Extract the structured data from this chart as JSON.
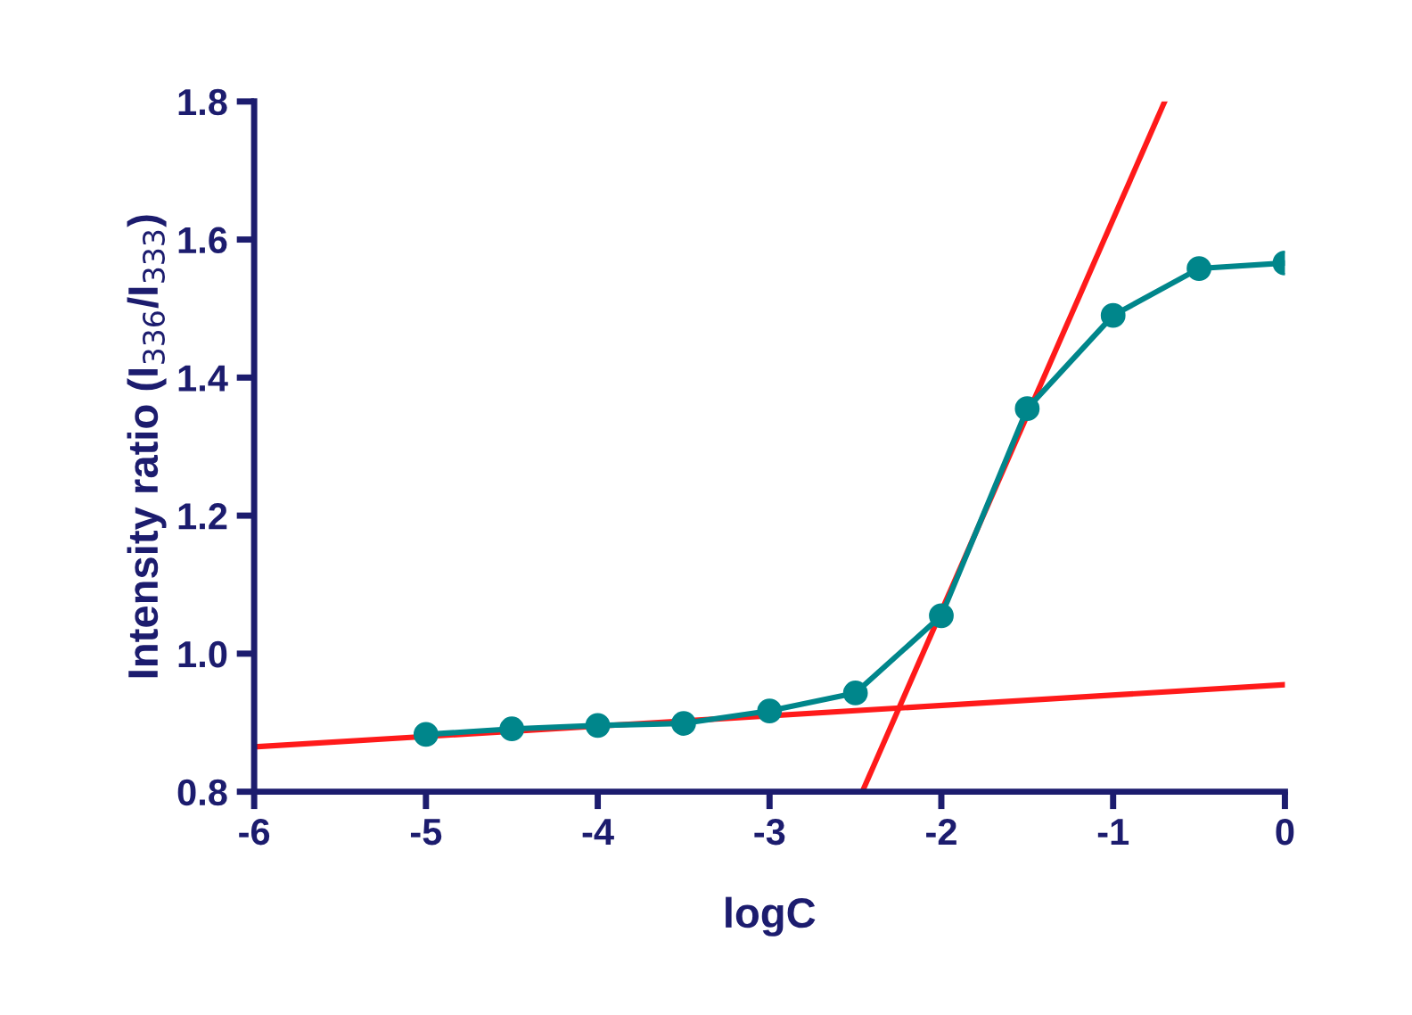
{
  "chart_data": {
    "type": "line",
    "xlabel": "logC",
    "ylabel": "Intensity ratio (I$_{336}$/I$_{333}$)",
    "xlim": [
      -6,
      0
    ],
    "xticks": [
      -6,
      -5,
      -4,
      -3,
      -2,
      -1,
      0
    ],
    "ylim": [
      0.8,
      1.8
    ],
    "yticks": [
      {
        "value": 0.8,
        "label": "0.8"
      },
      {
        "value": 1.0,
        "label": "1.0"
      },
      {
        "value": 1.2,
        "label": "1.2"
      },
      {
        "value": 1.4,
        "label": "1.4"
      },
      {
        "value": 1.6,
        "label": "1.6"
      },
      {
        "value": 1.8,
        "label": "1.8"
      }
    ],
    "grid": false,
    "legend": false,
    "series": [
      {
        "color": "#00868b",
        "marker": "circle",
        "x": [
          -5,
          -4.5,
          -4,
          -3.5,
          -3,
          -2.5,
          -2,
          -1.5,
          -1,
          -0.5,
          0
        ],
        "values": [
          0.883,
          0.891,
          0.896,
          0.899,
          0.917,
          0.943,
          1.055,
          1.355,
          1.49,
          1.558,
          1.566
        ]
      },
      {
        "color": "#ff1a1a",
        "marker": "none",
        "x": [
          -6,
          0
        ],
        "values": [
          0.865,
          0.955
        ]
      },
      {
        "color": "#ff1a1a",
        "marker": "none",
        "x": [
          -2.46,
          -0.7
        ],
        "values": [
          0.8,
          1.8
        ]
      }
    ]
  }
}
